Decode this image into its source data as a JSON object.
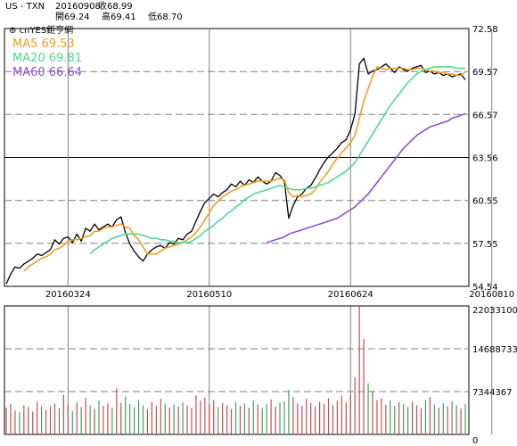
{
  "header": {
    "symbol": "US - TXN",
    "date": "20160908",
    "close_label": "收68.99",
    "open_label": "開69.24",
    "high_label": "高69.41",
    "low_label": "低68.70"
  },
  "watermark": "cnYES鉅亨網",
  "legend": {
    "ma5": "MA5 69.53",
    "ma20": "MA20 69.81",
    "ma60": "MA60 66.64"
  },
  "colors": {
    "price": "#000000",
    "ma5": "#f0a020",
    "ma20": "#50d890",
    "ma60": "#9050d0",
    "volume": "#c05050",
    "volume_alt": "#40a060",
    "grid_dash": "#808080"
  },
  "chart_data": [
    {
      "type": "line",
      "title": "",
      "ylabel": "",
      "ylim": [
        54.54,
        72.58
      ],
      "yticks": [
        "72.58",
        "69.57",
        "66.57",
        "63.56",
        "60.55",
        "57.55",
        "54.54"
      ],
      "xticks": [
        "20160324",
        "20160510",
        "20160624",
        "20160810"
      ],
      "xtick_index": [
        14,
        46,
        78,
        110
      ],
      "grid": true,
      "series": [
        {
          "name": "Close",
          "values": [
            54.7,
            55.4,
            55.9,
            55.8,
            56.1,
            56.3,
            56.5,
            56.8,
            56.7,
            56.9,
            57.1,
            57.8,
            57.5,
            57.9,
            58.0,
            57.6,
            58.2,
            57.7,
            58.6,
            58.4,
            58.9,
            58.5,
            58.7,
            58.9,
            58.7,
            59.2,
            59.4,
            58.3,
            57.5,
            57.0,
            56.6,
            56.3,
            56.8,
            57.1,
            57.3,
            57.4,
            57.2,
            57.6,
            57.5,
            57.9,
            57.8,
            58.2,
            58.4,
            59.1,
            59.8,
            60.4,
            60.7,
            61.0,
            60.8,
            61.1,
            61.3,
            61.7,
            61.5,
            61.9,
            61.6,
            62.0,
            61.8,
            62.2,
            61.9,
            61.7,
            61.9,
            62.5,
            62.3,
            61.9,
            59.3,
            60.2,
            60.8,
            61.0,
            61.4,
            61.6,
            62.1,
            62.7,
            63.2,
            63.6,
            63.9,
            64.2,
            64.6,
            64.8,
            65.5,
            66.6,
            70.1,
            70.5,
            69.4,
            69.6,
            69.7,
            69.9,
            70.1,
            69.8,
            69.5,
            69.9,
            69.7,
            69.6,
            69.8,
            69.9,
            70.0,
            69.5,
            69.6,
            69.4,
            69.5,
            69.3,
            69.4,
            69.2,
            69.3,
            69.4,
            68.99
          ],
          "color_key": "price"
        },
        {
          "name": "MA5",
          "values": [
            null,
            null,
            null,
            null,
            55.6,
            55.9,
            56.1,
            56.3,
            56.5,
            56.6,
            56.8,
            57.1,
            57.2,
            57.4,
            57.7,
            57.8,
            57.8,
            57.9,
            58.0,
            58.1,
            58.4,
            58.4,
            58.6,
            58.7,
            58.7,
            58.8,
            58.9,
            58.7,
            58.6,
            58.1,
            57.8,
            57.3,
            56.8,
            56.8,
            56.8,
            57.0,
            57.2,
            57.3,
            57.4,
            57.5,
            57.6,
            57.8,
            58.0,
            58.3,
            58.7,
            59.2,
            59.7,
            60.2,
            60.5,
            60.8,
            61.0,
            61.2,
            61.3,
            61.5,
            61.6,
            61.7,
            61.8,
            61.9,
            61.9,
            61.9,
            61.9,
            62.0,
            62.1,
            62.0,
            61.1,
            60.8,
            60.9,
            60.8,
            60.9,
            61.0,
            61.3,
            61.8,
            62.2,
            62.6,
            63.1,
            63.5,
            63.9,
            64.2,
            64.6,
            65.1,
            66.3,
            67.5,
            68.4,
            69.2,
            69.9,
            69.8,
            69.7,
            69.8,
            69.8,
            69.8,
            69.8,
            69.7,
            69.7,
            69.8,
            69.8,
            69.7,
            69.6,
            69.6,
            69.5,
            69.5,
            69.4,
            69.4,
            69.3,
            69.3,
            69.53
          ],
          "color_key": "ma5"
        },
        {
          "name": "MA20",
          "values": [
            null,
            null,
            null,
            null,
            null,
            null,
            null,
            null,
            null,
            null,
            null,
            null,
            null,
            null,
            null,
            null,
            null,
            null,
            null,
            56.8,
            57.1,
            57.3,
            57.5,
            57.7,
            57.9,
            58.0,
            58.1,
            58.2,
            58.2,
            58.2,
            58.2,
            58.1,
            58.0,
            57.9,
            57.9,
            57.8,
            57.8,
            57.7,
            57.7,
            57.6,
            57.6,
            57.6,
            57.7,
            57.9,
            58.1,
            58.4,
            58.6,
            58.8,
            59.1,
            59.3,
            59.6,
            59.8,
            60.1,
            60.3,
            60.6,
            60.8,
            61.0,
            61.1,
            61.2,
            61.3,
            61.4,
            61.5,
            61.6,
            61.5,
            61.4,
            61.3,
            61.3,
            61.3,
            61.4,
            61.4,
            61.5,
            61.6,
            61.7,
            61.8,
            62.0,
            62.2,
            62.4,
            62.6,
            62.9,
            63.2,
            63.7,
            64.2,
            64.7,
            65.2,
            65.7,
            66.2,
            66.7,
            67.2,
            67.6,
            68.0,
            68.4,
            68.8,
            69.1,
            69.4,
            69.6,
            69.7,
            69.8,
            69.9,
            69.9,
            69.9,
            69.9,
            69.9,
            69.8,
            69.8,
            69.81
          ],
          "color_key": "ma20"
        },
        {
          "name": "MA60",
          "values": [
            null,
            null,
            null,
            null,
            null,
            null,
            null,
            null,
            null,
            null,
            null,
            null,
            null,
            null,
            null,
            null,
            null,
            null,
            null,
            null,
            null,
            null,
            null,
            null,
            null,
            null,
            null,
            null,
            null,
            null,
            null,
            null,
            null,
            null,
            null,
            null,
            null,
            null,
            null,
            null,
            null,
            null,
            null,
            null,
            null,
            null,
            null,
            null,
            null,
            null,
            null,
            null,
            null,
            null,
            null,
            null,
            null,
            null,
            null,
            57.6,
            57.7,
            57.8,
            57.9,
            58.0,
            58.2,
            58.3,
            58.4,
            58.5,
            58.6,
            58.7,
            58.8,
            58.9,
            59.0,
            59.1,
            59.2,
            59.3,
            59.5,
            59.7,
            59.9,
            60.1,
            60.4,
            60.7,
            61.0,
            61.4,
            61.8,
            62.2,
            62.6,
            63.0,
            63.4,
            63.8,
            64.2,
            64.5,
            64.8,
            65.1,
            65.3,
            65.5,
            65.7,
            65.8,
            65.9,
            66.0,
            66.1,
            66.3,
            66.4,
            66.5,
            66.64
          ],
          "color_key": "ma60"
        }
      ]
    },
    {
      "type": "bar",
      "title": "",
      "ylabel": "",
      "ylim": [
        0,
        22033100
      ],
      "yticks": [
        "22033100",
        "14688733",
        "7344367",
        "0"
      ],
      "grid": true,
      "values": [
        4.6,
        5.2,
        4.1,
        3.8,
        5.0,
        4.7,
        3.9,
        5.6,
        4.8,
        4.2,
        4.9,
        5.3,
        4.5,
        6.8,
        5.1,
        4.0,
        5.5,
        4.7,
        6.2,
        5.0,
        4.4,
        5.8,
        4.9,
        5.3,
        4.6,
        7.9,
        5.4,
        6.5,
        5.2,
        4.7,
        5.9,
        5.0,
        4.3,
        5.6,
        4.9,
        6.1,
        5.3,
        4.6,
        5.1,
        4.8,
        5.5,
        5.0,
        4.6,
        6.7,
        5.8,
        6.3,
        5.2,
        5.9,
        4.7,
        5.4,
        5.0,
        4.4,
        5.6,
        4.9,
        5.3,
        4.6,
        5.8,
        5.1,
        4.5,
        5.2,
        6.0,
        4.8,
        5.5,
        5.7,
        7.6,
        6.4,
        5.3,
        4.9,
        6.1,
        5.4,
        4.8,
        5.6,
        5.2,
        6.2,
        5.0,
        5.8,
        6.6,
        5.5,
        6.9,
        9.8,
        21.9,
        16.4,
        8.8,
        7.4,
        5.9,
        6.2,
        5.1,
        5.8,
        4.9,
        5.5,
        5.2,
        4.7,
        5.6,
        5.0,
        4.5,
        5.9,
        6.4,
        5.1,
        4.6,
        5.3,
        4.8,
        5.7,
        5.0,
        4.4,
        5.2
      ],
      "value_unit": "millions",
      "color_key": "volume"
    }
  ]
}
